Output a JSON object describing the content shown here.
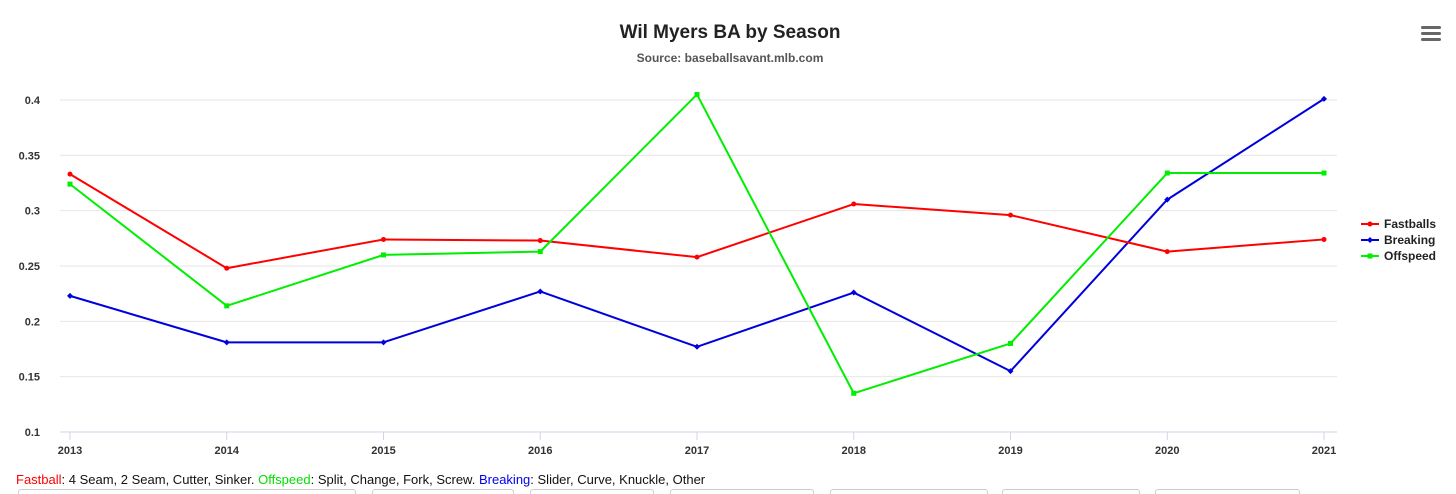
{
  "chart_data": {
    "type": "line",
    "title": "Wil Myers BA by Season",
    "subtitle": "Source: baseballsavant.mlb.com",
    "x": [
      "2013",
      "2014",
      "2015",
      "2016",
      "2017",
      "2018",
      "2019",
      "2020",
      "2021"
    ],
    "y_ticks": [
      "0.1",
      "0.15",
      "0.2",
      "0.25",
      "0.3",
      "0.35",
      "0.4"
    ],
    "ylim": [
      0.1,
      0.4
    ],
    "grid": true,
    "legend_position": "right",
    "series": [
      {
        "name": "Fastballs",
        "color": "#ff0000",
        "marker": "circle",
        "values": [
          0.333,
          0.248,
          0.274,
          0.273,
          0.258,
          0.306,
          0.296,
          0.263,
          0.274
        ]
      },
      {
        "name": "Breaking",
        "color": "#0000dd",
        "marker": "diamond",
        "values": [
          0.223,
          0.181,
          0.181,
          0.227,
          0.177,
          0.226,
          0.155,
          0.31,
          0.401
        ]
      },
      {
        "name": "Offspeed",
        "color": "#00ee00",
        "marker": "square",
        "values": [
          0.324,
          0.214,
          0.26,
          0.263,
          0.405,
          0.135,
          0.18,
          0.334,
          0.334
        ]
      }
    ]
  },
  "menu": {
    "icon": "hamburger-menu-icon"
  },
  "footnote": {
    "fastball_label": "Fastball",
    "fastball_text": ": 4 Seam, 2 Seam, Cutter, Sinker. ",
    "offspeed_label": "Offspeed",
    "offspeed_text": ": Split, Change, Fork, Screw. ",
    "breaking_label": "Breaking",
    "breaking_text": ": Slider, Curve, Knuckle, Other"
  }
}
